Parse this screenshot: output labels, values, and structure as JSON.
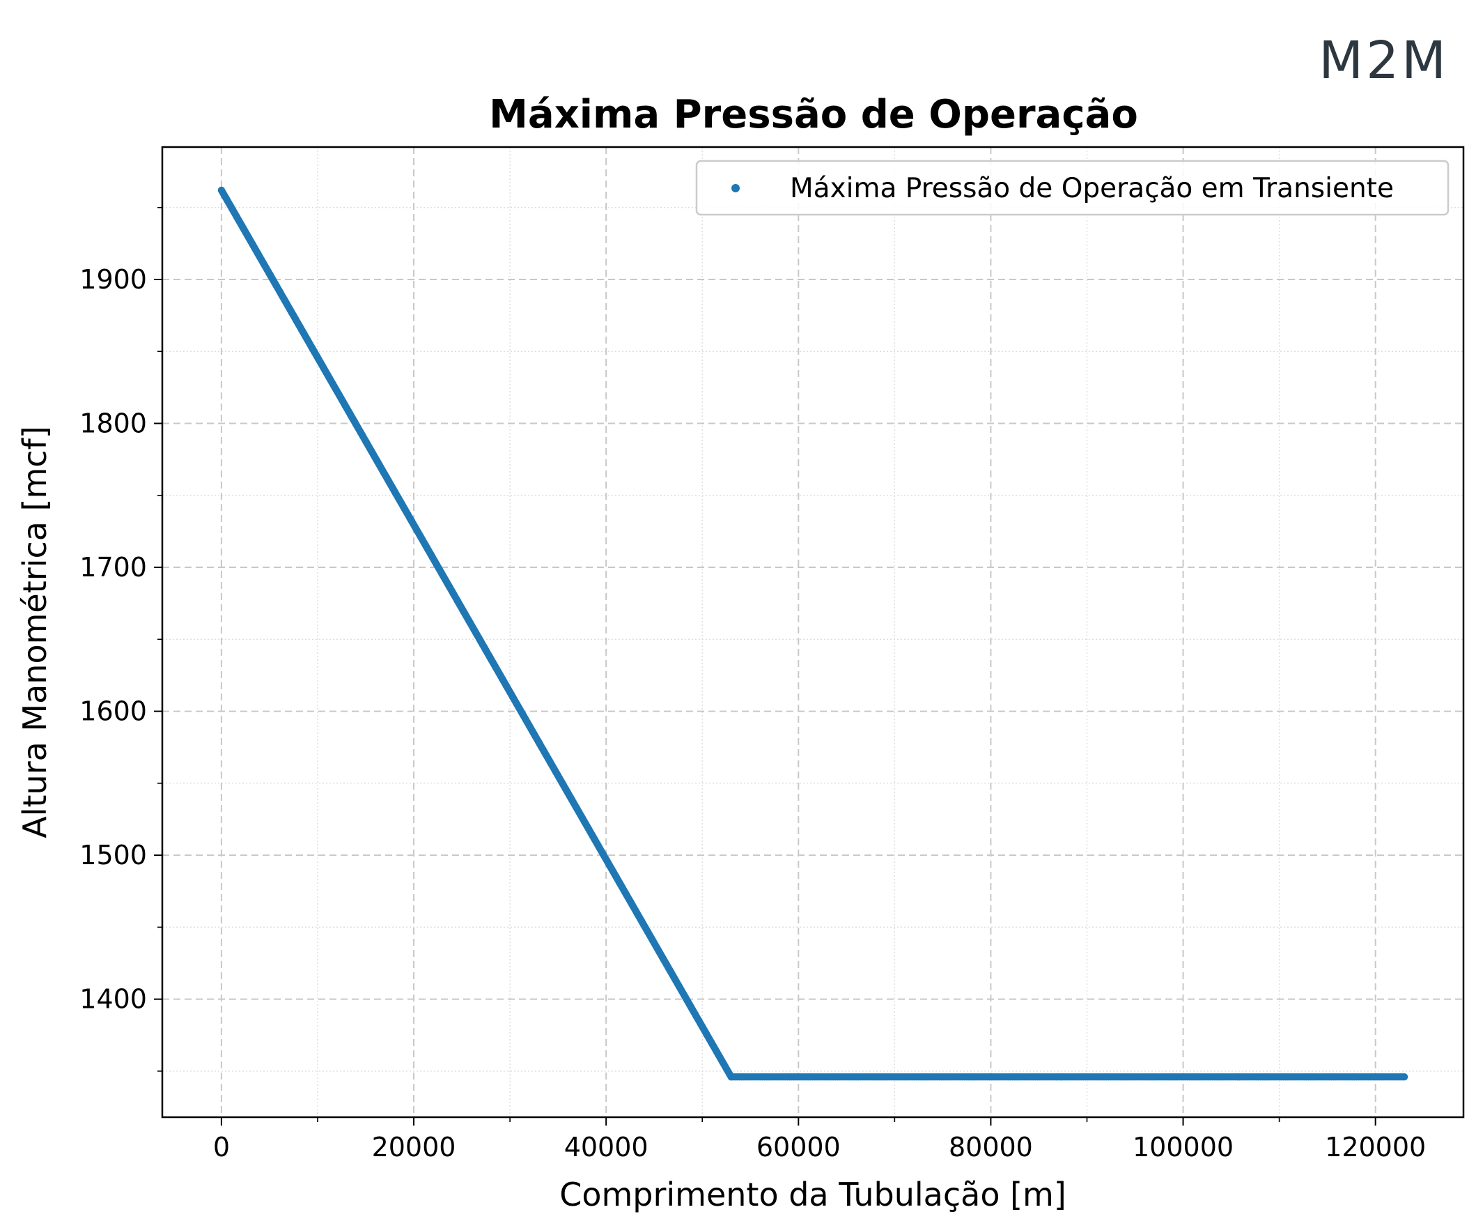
{
  "logo": {
    "text": "M2M",
    "color": "#2d3740"
  },
  "chart_data": {
    "type": "scatter",
    "title": "Máxima Pressão de Operação",
    "xlabel": "Comprimento da Tubulação [m]",
    "ylabel": "Altura Manométrica [mcf]",
    "xlim": [
      -6150,
      129150
    ],
    "ylim": [
      1318,
      1992
    ],
    "xticks": [
      0,
      20000,
      40000,
      60000,
      80000,
      100000,
      120000
    ],
    "yticks": [
      1400,
      1500,
      1600,
      1700,
      1800,
      1900
    ],
    "x_minor_step": 10000,
    "y_minor_step": 50,
    "grid": true,
    "legend_position": "top-right",
    "series": [
      {
        "name": "Máxima Pressão de Operação em Transiente",
        "color": "#1f77b4",
        "segments": [
          {
            "x": [
              0,
              53000
            ],
            "y": [
              1962,
              1346
            ]
          },
          {
            "x": [
              53000,
              123000
            ],
            "y": [
              1346,
              1346
            ]
          }
        ]
      }
    ]
  }
}
